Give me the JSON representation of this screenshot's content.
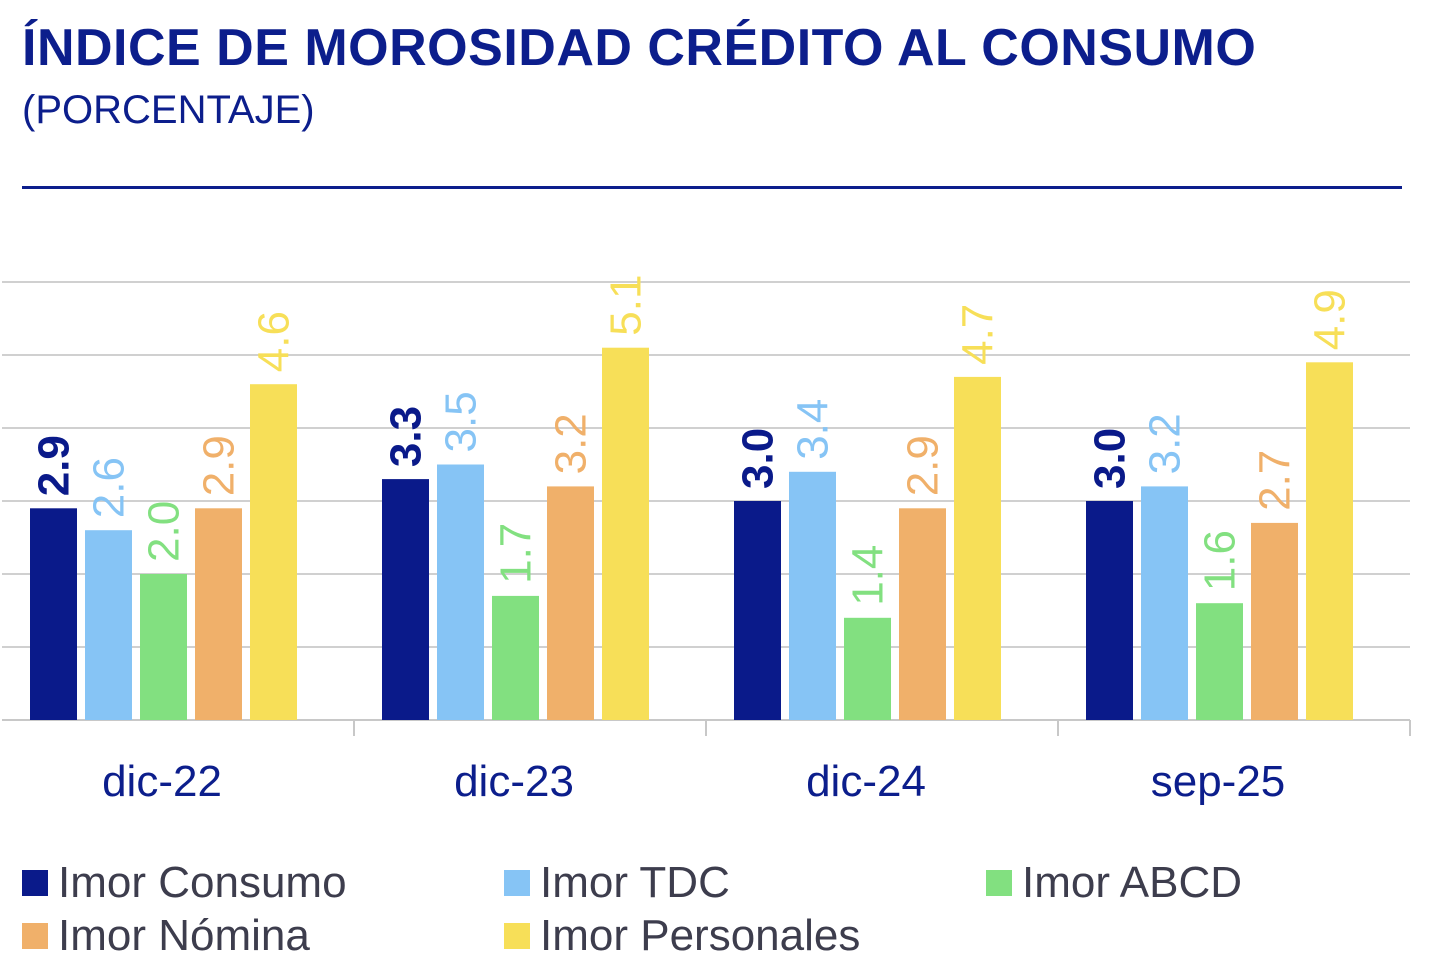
{
  "header": {
    "title": "ÍNDICE DE MOROSIDAD CRÉDITO AL CONSUMO",
    "subtitle": "(PORCENTAJE)"
  },
  "chart_data": {
    "type": "bar",
    "title": "ÍNDICE DE MOROSIDAD CRÉDITO AL CONSUMO",
    "subtitle": "(PORCENTAJE)",
    "xlabel": "",
    "ylabel": "",
    "ylim": [
      0,
      6
    ],
    "grid": true,
    "legend_position": "bottom",
    "categories": [
      "dic-22",
      "dic-23",
      "dic-24",
      "sep-25"
    ],
    "series": [
      {
        "name": "Imor Consumo",
        "color": "#0a1a8a",
        "label_color": "#0a1a8a",
        "label_bold": true,
        "values": [
          2.9,
          3.3,
          3.0,
          3.0
        ]
      },
      {
        "name": "Imor TDC",
        "color": "#86c4f5",
        "label_color": "#86c4f5",
        "label_bold": false,
        "values": [
          2.6,
          3.5,
          3.4,
          3.2
        ]
      },
      {
        "name": "Imor ABCD",
        "color": "#82e080",
        "label_color": "#82e080",
        "label_bold": false,
        "values": [
          2.0,
          1.7,
          1.4,
          1.6
        ]
      },
      {
        "name": "Imor Nómina",
        "color": "#f0b06a",
        "label_color": "#f0b06a",
        "label_bold": false,
        "values": [
          2.9,
          3.2,
          2.9,
          2.7
        ]
      },
      {
        "name": "Imor Personales",
        "color": "#f7df58",
        "label_color": "#f7df58",
        "label_bold": false,
        "values": [
          4.6,
          5.1,
          4.7,
          4.9
        ]
      }
    ]
  }
}
